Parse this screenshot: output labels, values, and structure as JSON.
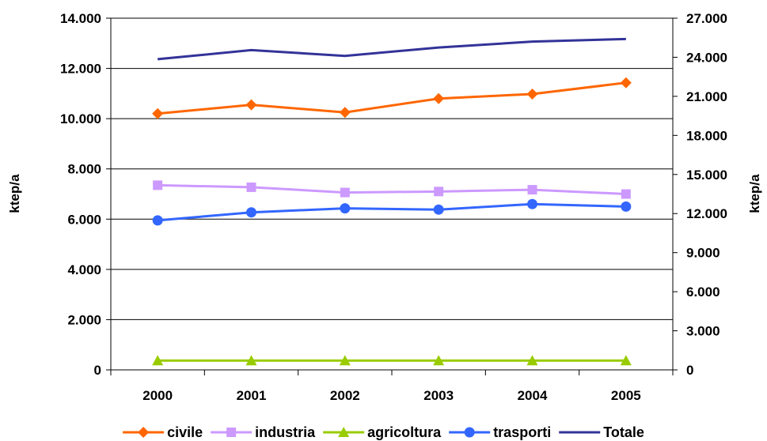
{
  "chart_data": {
    "type": "line",
    "categories": [
      "2000",
      "2001",
      "2002",
      "2003",
      "2004",
      "2005"
    ],
    "ylabel_left": "ktep/a",
    "ylabel_right": "ktep/a",
    "ylim_left": [
      0,
      14000
    ],
    "ylim_right": [
      0,
      27000
    ],
    "yticks_left": [
      "0",
      "2.000",
      "4.000",
      "6.000",
      "8.000",
      "10.000",
      "12.000",
      "14.000"
    ],
    "yticks_right": [
      "0",
      "3.000",
      "6.000",
      "9.000",
      "12.000",
      "15.000",
      "18.000",
      "21.000",
      "24.000",
      "27.000"
    ],
    "grid": "horizontal",
    "legend_position": "bottom",
    "series": [
      {
        "name": "civile",
        "axis": "left",
        "color": "#FF6600",
        "marker": "diamond",
        "values": [
          10200,
          10550,
          10250,
          10800,
          10980,
          11430
        ]
      },
      {
        "name": "industria",
        "axis": "left",
        "color": "#CC99FF",
        "marker": "square",
        "values": [
          7350,
          7270,
          7060,
          7100,
          7170,
          7000
        ]
      },
      {
        "name": "agricoltura",
        "axis": "left",
        "color": "#99CC00",
        "marker": "triangle",
        "values": [
          370,
          370,
          370,
          370,
          370,
          370
        ]
      },
      {
        "name": "trasporti",
        "axis": "left",
        "color": "#3366FF",
        "marker": "circle",
        "values": [
          5950,
          6270,
          6430,
          6380,
          6600,
          6500
        ]
      },
      {
        "name": "Totale",
        "axis": "right",
        "color": "#333399",
        "marker": "none",
        "values": [
          23850,
          24550,
          24100,
          24750,
          25200,
          25400
        ]
      }
    ]
  }
}
